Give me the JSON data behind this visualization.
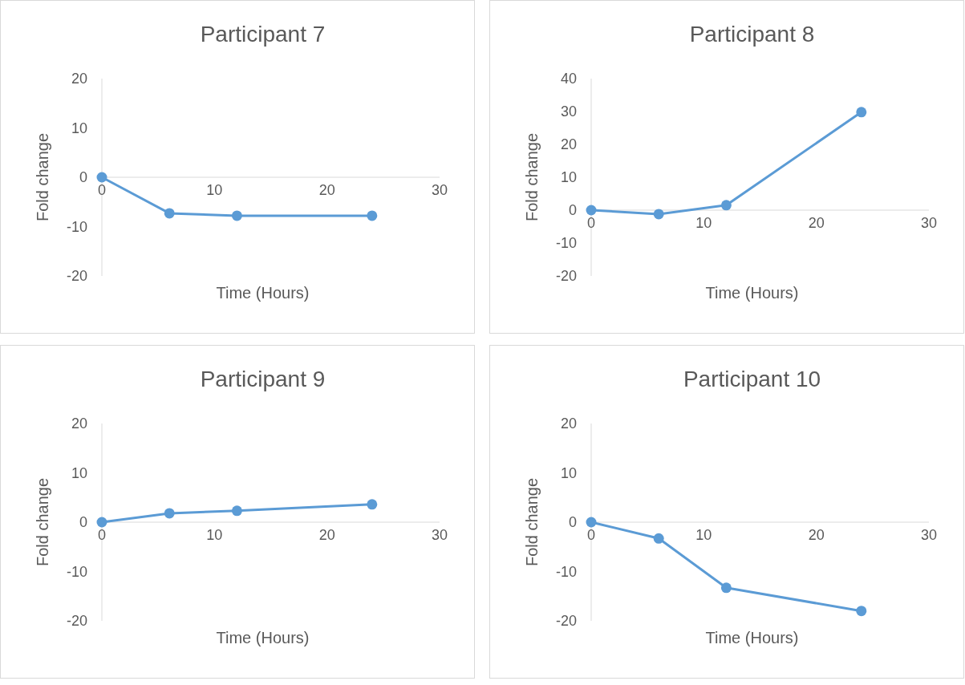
{
  "chart_data": [
    {
      "type": "line",
      "title": "Participant 7",
      "xlabel": "Time (Hours)",
      "ylabel": "Fold change",
      "x": [
        0,
        6,
        12,
        24
      ],
      "marker": "circle",
      "xlim": [
        0,
        30
      ],
      "ylim": [
        -20,
        20
      ],
      "xticks": [
        0,
        10,
        20,
        30
      ],
      "yticks": [
        -20,
        -10,
        0,
        10,
        20
      ],
      "series": [
        {
          "color": "#5b9bd5",
          "values": [
            0,
            -7.3,
            -7.8,
            -7.8
          ]
        }
      ]
    },
    {
      "type": "line",
      "title": "Participant 8",
      "xlabel": "Time (Hours)",
      "ylabel": "Fold change",
      "x": [
        0,
        6,
        12,
        24
      ],
      "marker": "circle",
      "xlim": [
        0,
        30
      ],
      "ylim": [
        -20,
        40
      ],
      "xticks": [
        0,
        10,
        20,
        30
      ],
      "yticks": [
        -20,
        -10,
        0,
        10,
        20,
        30,
        40
      ],
      "series": [
        {
          "color": "#5b9bd5",
          "values": [
            0,
            -1.2,
            1.5,
            29.8
          ]
        }
      ]
    },
    {
      "type": "line",
      "title": "Participant 9",
      "xlabel": "Time (Hours)",
      "ylabel": "Fold change",
      "x": [
        0,
        6,
        12,
        24
      ],
      "marker": "circle",
      "xlim": [
        0,
        30
      ],
      "ylim": [
        -20,
        20
      ],
      "xticks": [
        0,
        10,
        20,
        30
      ],
      "yticks": [
        -20,
        -10,
        0,
        10,
        20
      ],
      "series": [
        {
          "color": "#5b9bd5",
          "values": [
            0,
            1.8,
            2.3,
            3.6
          ]
        }
      ]
    },
    {
      "type": "line",
      "title": "Participant 10",
      "xlabel": "Time (Hours)",
      "ylabel": "Fold change",
      "x": [
        0,
        6,
        12,
        24
      ],
      "marker": "circle",
      "xlim": [
        0,
        30
      ],
      "ylim": [
        -20,
        20
      ],
      "xticks": [
        0,
        10,
        20,
        30
      ],
      "yticks": [
        -20,
        -10,
        0,
        10,
        20
      ],
      "series": [
        {
          "color": "#5b9bd5",
          "values": [
            0,
            -3.3,
            -13.3,
            -18
          ]
        }
      ]
    }
  ]
}
